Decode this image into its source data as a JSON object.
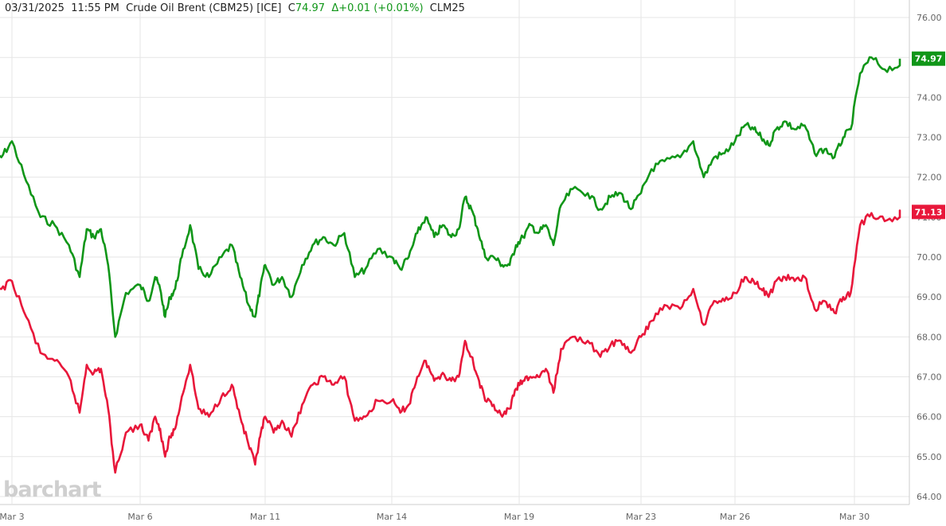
{
  "header": {
    "date": "03/31/2025",
    "time": "11:55 PM",
    "instrument": "Crude Oil Brent (CBM25) [ICE]",
    "close_prefix": "C",
    "close_value": "74.97",
    "change": "Δ+0.01 (+0.01%)",
    "symbol": "CLM25"
  },
  "watermark": "barchart",
  "colors": {
    "upper": "#109618",
    "lower": "#e8173a",
    "grid": "#e6e6e6",
    "axis_text": "#666666"
  },
  "chart_data": {
    "type": "line",
    "x_ticks": [
      "Mar 3",
      "Mar 6",
      "Mar 11",
      "Mar 14",
      "Mar 19",
      "Mar 23",
      "Mar 26",
      "Mar 30"
    ],
    "y_ticks": [
      64.0,
      65.0,
      66.0,
      67.0,
      68.0,
      69.0,
      70.0,
      71.0,
      72.0,
      73.0,
      74.0,
      75.0,
      76.0
    ],
    "ylim": [
      63.8,
      76.2
    ],
    "grid": true,
    "series": [
      {
        "last_label": "74.97",
        "points": [
          [
            "Mar 2",
            72.9
          ],
          [
            "Mar 3",
            72.5
          ],
          [
            "Mar 3",
            72.9
          ],
          [
            "Mar 3",
            71.9
          ],
          [
            "Mar 4",
            71.0
          ],
          [
            "Mar 4",
            70.8
          ],
          [
            "Mar 4",
            70.3
          ],
          [
            "Mar 5",
            69.5
          ],
          [
            "Mar 5",
            70.7
          ],
          [
            "Mar 5",
            70.5
          ],
          [
            "Mar 5",
            70.7
          ],
          [
            "Mar 5",
            69.8
          ],
          [
            "Mar 5",
            68.0
          ],
          [
            "Mar 6",
            69.1
          ],
          [
            "Mar 6",
            69.3
          ],
          [
            "Mar 6",
            68.9
          ],
          [
            "Mar 7",
            69.5
          ],
          [
            "Mar 7",
            69.2
          ],
          [
            "Mar 7",
            68.5
          ],
          [
            "Mar 7",
            69.0
          ],
          [
            "Mar 7",
            69.2
          ],
          [
            "Mar 8",
            70.0
          ],
          [
            "Mar 8",
            70.8
          ],
          [
            "Mar 8",
            69.7
          ],
          [
            "Mar 9",
            69.5
          ],
          [
            "Mar 9",
            70.0
          ],
          [
            "Mar 10",
            70.3
          ],
          [
            "Mar 10",
            69.5
          ],
          [
            "Mar 10",
            68.8
          ],
          [
            "Mar 11",
            68.5
          ],
          [
            "Mar 11",
            69.2
          ],
          [
            "Mar 11",
            69.8
          ],
          [
            "Mar 11",
            69.3
          ],
          [
            "Mar 11",
            69.5
          ],
          [
            "Mar 12",
            69.0
          ],
          [
            "Mar 12",
            69.8
          ],
          [
            "Mar 12",
            70.3
          ],
          [
            "Mar 12",
            70.5
          ],
          [
            "Mar 13",
            70.3
          ],
          [
            "Mar 13",
            70.6
          ],
          [
            "Mar 13",
            69.5
          ],
          [
            "Mar 13",
            69.7
          ],
          [
            "Mar 14",
            70.2
          ],
          [
            "Mar 14",
            70.0
          ],
          [
            "Mar 14",
            69.7
          ],
          [
            "Mar 15",
            70.0
          ],
          [
            "Mar 15",
            70.6
          ],
          [
            "Mar 15",
            71.0
          ],
          [
            "Mar 16",
            70.5
          ],
          [
            "Mar 16",
            70.8
          ],
          [
            "Mar 16",
            70.5
          ],
          [
            "Mar 17",
            70.7
          ],
          [
            "Mar 17",
            71.5
          ],
          [
            "Mar 17",
            71.2
          ],
          [
            "Mar 17",
            70.7
          ],
          [
            "Mar 18",
            70.0
          ],
          [
            "Mar 18",
            70.0
          ],
          [
            "Mar 18",
            69.8
          ],
          [
            "Mar 19",
            69.8
          ],
          [
            "Mar 19",
            70.3
          ],
          [
            "Mar 19",
            70.5
          ],
          [
            "Mar 19",
            70.8
          ],
          [
            "Mar 20",
            70.6
          ],
          [
            "Mar 20",
            70.8
          ],
          [
            "Mar 20",
            70.3
          ],
          [
            "Mar 20",
            71.3
          ],
          [
            "Mar 21",
            71.7
          ],
          [
            "Mar 21",
            71.6
          ],
          [
            "Mar 22",
            71.2
          ],
          [
            "Mar 22",
            71.5
          ],
          [
            "Mar 22",
            71.6
          ],
          [
            "Mar 23",
            71.2
          ],
          [
            "Mar 23",
            71.6
          ],
          [
            "Mar 23",
            72.2
          ],
          [
            "Mar 24",
            72.4
          ],
          [
            "Mar 24",
            72.5
          ],
          [
            "Mar 25",
            72.9
          ],
          [
            "Mar 25",
            72.0
          ],
          [
            "Mar 25",
            72.5
          ],
          [
            "Mar 26",
            72.6
          ],
          [
            "Mar 26",
            72.9
          ],
          [
            "Mar 26",
            73.3
          ],
          [
            "Mar 27",
            73.2
          ],
          [
            "Mar 27",
            73.0
          ],
          [
            "Mar 27",
            72.8
          ],
          [
            "Mar 27",
            73.2
          ],
          [
            "Mar 28",
            73.4
          ],
          [
            "Mar 28",
            73.2
          ],
          [
            "Mar 28",
            73.3
          ],
          [
            "Mar 29",
            72.6
          ],
          [
            "Mar 29",
            72.7
          ],
          [
            "Mar 29",
            72.5
          ],
          [
            "Mar 30",
            73.0
          ],
          [
            "Mar 30",
            73.2
          ],
          [
            "Mar 30",
            74.6
          ],
          [
            "Mar 30",
            75.0
          ],
          [
            "Mar 31",
            74.7
          ],
          [
            "Mar 31",
            74.8
          ],
          [
            "Mar 31",
            74.97
          ]
        ]
      },
      {
        "last_label": "71.13",
        "points": [
          [
            "Mar 2",
            69.5
          ],
          [
            "Mar 3",
            69.2
          ],
          [
            "Mar 3",
            69.4
          ],
          [
            "Mar 3",
            68.5
          ],
          [
            "Mar 4",
            67.6
          ],
          [
            "Mar 4",
            67.4
          ],
          [
            "Mar 4",
            67.0
          ],
          [
            "Mar 5",
            66.1
          ],
          [
            "Mar 5",
            67.3
          ],
          [
            "Mar 5",
            67.1
          ],
          [
            "Mar 5",
            67.2
          ],
          [
            "Mar 5",
            66.2
          ],
          [
            "Mar 5",
            64.6
          ],
          [
            "Mar 6",
            65.6
          ],
          [
            "Mar 6",
            65.8
          ],
          [
            "Mar 6",
            65.4
          ],
          [
            "Mar 7",
            66.0
          ],
          [
            "Mar 7",
            65.7
          ],
          [
            "Mar 7",
            65.0
          ],
          [
            "Mar 7",
            65.5
          ],
          [
            "Mar 7",
            65.7
          ],
          [
            "Mar 8",
            66.5
          ],
          [
            "Mar 8",
            67.3
          ],
          [
            "Mar 8",
            66.2
          ],
          [
            "Mar 9",
            66.0
          ],
          [
            "Mar 9",
            66.5
          ],
          [
            "Mar 10",
            66.8
          ],
          [
            "Mar 10",
            66.0
          ],
          [
            "Mar 10",
            65.3
          ],
          [
            "Mar 11",
            64.8
          ],
          [
            "Mar 11",
            65.5
          ],
          [
            "Mar 11",
            66.0
          ],
          [
            "Mar 11",
            65.6
          ],
          [
            "Mar 11",
            65.9
          ],
          [
            "Mar 12",
            65.5
          ],
          [
            "Mar 12",
            66.3
          ],
          [
            "Mar 12",
            66.8
          ],
          [
            "Mar 12",
            67.0
          ],
          [
            "Mar 13",
            66.8
          ],
          [
            "Mar 13",
            67.0
          ],
          [
            "Mar 13",
            65.9
          ],
          [
            "Mar 13",
            66.0
          ],
          [
            "Mar 14",
            66.4
          ],
          [
            "Mar 14",
            66.4
          ],
          [
            "Mar 14",
            66.1
          ],
          [
            "Mar 15",
            66.3
          ],
          [
            "Mar 15",
            67.0
          ],
          [
            "Mar 15",
            67.4
          ],
          [
            "Mar 16",
            66.9
          ],
          [
            "Mar 16",
            67.1
          ],
          [
            "Mar 16",
            66.9
          ],
          [
            "Mar 17",
            67.0
          ],
          [
            "Mar 17",
            67.9
          ],
          [
            "Mar 17",
            67.5
          ],
          [
            "Mar 17",
            67.0
          ],
          [
            "Mar 18",
            66.4
          ],
          [
            "Mar 18",
            66.3
          ],
          [
            "Mar 18",
            66.0
          ],
          [
            "Mar 19",
            66.2
          ],
          [
            "Mar 19",
            66.7
          ],
          [
            "Mar 19",
            66.9
          ],
          [
            "Mar 19",
            67.0
          ],
          [
            "Mar 20",
            67.0
          ],
          [
            "Mar 20",
            67.2
          ],
          [
            "Mar 20",
            66.6
          ],
          [
            "Mar 20",
            67.7
          ],
          [
            "Mar 21",
            68.0
          ],
          [
            "Mar 21",
            67.9
          ],
          [
            "Mar 22",
            67.5
          ],
          [
            "Mar 22",
            67.8
          ],
          [
            "Mar 22",
            67.9
          ],
          [
            "Mar 23",
            67.6
          ],
          [
            "Mar 23",
            68.0
          ],
          [
            "Mar 23",
            68.4
          ],
          [
            "Mar 24",
            68.8
          ],
          [
            "Mar 24",
            68.7
          ],
          [
            "Mar 25",
            69.2
          ],
          [
            "Mar 25",
            68.3
          ],
          [
            "Mar 25",
            68.9
          ],
          [
            "Mar 26",
            68.9
          ],
          [
            "Mar 26",
            69.1
          ],
          [
            "Mar 26",
            69.5
          ],
          [
            "Mar 27",
            69.4
          ],
          [
            "Mar 27",
            69.2
          ],
          [
            "Mar 27",
            69.0
          ],
          [
            "Mar 27",
            69.4
          ],
          [
            "Mar 28",
            69.5
          ],
          [
            "Mar 28",
            69.4
          ],
          [
            "Mar 28",
            69.5
          ],
          [
            "Mar 29",
            68.7
          ],
          [
            "Mar 29",
            68.9
          ],
          [
            "Mar 29",
            68.6
          ],
          [
            "Mar 30",
            69.0
          ],
          [
            "Mar 30",
            69.1
          ],
          [
            "Mar 30",
            70.8
          ],
          [
            "Mar 30",
            71.1
          ],
          [
            "Mar 31",
            70.9
          ],
          [
            "Mar 31",
            71.0
          ],
          [
            "Mar 31",
            71.13
          ]
        ]
      }
    ]
  }
}
